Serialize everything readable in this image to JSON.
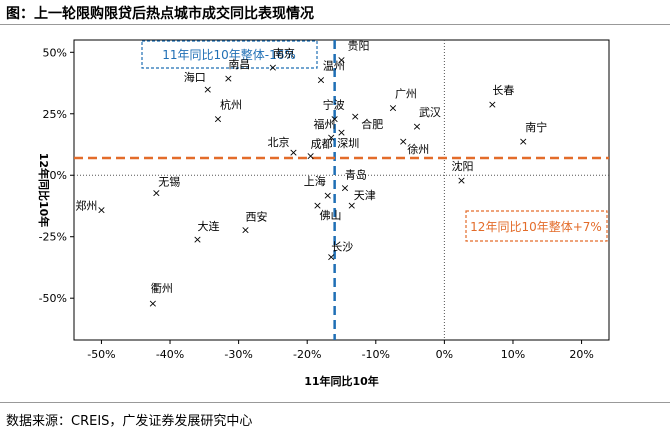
{
  "title": "图：上一轮限购限贷后热点城市成交同比表现情况",
  "source": "数据来源：CREIS，广发证券发展研究中心",
  "colors": {
    "blue": "#1f6fb5",
    "orange": "#e36c2a",
    "grid": "#888888"
  },
  "chart_data": {
    "type": "scatter",
    "title": "上一轮限购限贷后热点城市成交同比表现情况",
    "xlabel": "11年同比10年",
    "ylabel": "12年同比10年",
    "xlim": [
      -0.54,
      0.24
    ],
    "ylim": [
      -0.67,
      0.55
    ],
    "xticks": [
      -0.5,
      -0.4,
      -0.3,
      -0.2,
      -0.1,
      0,
      0.1,
      0.2
    ],
    "xtick_labels": [
      "-50%",
      "-40%",
      "-30%",
      "-20%",
      "-10%",
      "0%",
      "10%",
      "20%"
    ],
    "yticks": [
      -0.5,
      -0.25,
      0,
      0.25,
      0.5
    ],
    "ytick_labels": [
      "-50%",
      "-25%",
      "0%",
      "25%",
      "50%"
    ],
    "reference_lines": {
      "x_mean": {
        "value": -0.16,
        "label": "11年同比10年整体-16%"
      },
      "y_mean": {
        "value": 0.07,
        "label": "12年同比10年整体+7%"
      }
    },
    "points": [
      {
        "name": "贵阳",
        "x": -0.15,
        "y": 0.47
      },
      {
        "name": "南京",
        "x": -0.25,
        "y": 0.44
      },
      {
        "name": "南昌",
        "x": -0.315,
        "y": 0.395
      },
      {
        "name": "温州",
        "x": -0.18,
        "y": 0.39
      },
      {
        "name": "海口",
        "x": -0.345,
        "y": 0.35
      },
      {
        "name": "杭州",
        "x": -0.33,
        "y": 0.23
      },
      {
        "name": "宁波",
        "x": -0.16,
        "y": 0.23
      },
      {
        "name": "福州",
        "x": -0.15,
        "y": 0.175
      },
      {
        "name": "合肥",
        "x": -0.13,
        "y": 0.24
      },
      {
        "name": "广州",
        "x": -0.075,
        "y": 0.275
      },
      {
        "name": "武汉",
        "x": -0.04,
        "y": 0.2
      },
      {
        "name": "长春",
        "x": 0.07,
        "y": 0.29
      },
      {
        "name": "南宁",
        "x": 0.115,
        "y": 0.14
      },
      {
        "name": "北京",
        "x": -0.22,
        "y": 0.095
      },
      {
        "name": "成都",
        "x": -0.195,
        "y": 0.08
      },
      {
        "name": "深圳",
        "x": -0.165,
        "y": 0.155
      },
      {
        "name": "徐州",
        "x": -0.06,
        "y": 0.14
      },
      {
        "name": "沈阳",
        "x": 0.025,
        "y": -0.02
      },
      {
        "name": "上海",
        "x": -0.17,
        "y": -0.08
      },
      {
        "name": "青岛",
        "x": -0.145,
        "y": -0.05
      },
      {
        "name": "天津",
        "x": -0.135,
        "y": -0.12
      },
      {
        "name": "佛山",
        "x": -0.185,
        "y": -0.12
      },
      {
        "name": "长沙",
        "x": -0.165,
        "y": -0.33
      },
      {
        "name": "无锡",
        "x": -0.42,
        "y": -0.07
      },
      {
        "name": "郑州",
        "x": -0.5,
        "y": -0.14
      },
      {
        "name": "大连",
        "x": -0.36,
        "y": -0.26
      },
      {
        "name": "西安",
        "x": -0.29,
        "y": -0.22
      },
      {
        "name": "衢州",
        "x": -0.425,
        "y": -0.52
      }
    ]
  }
}
